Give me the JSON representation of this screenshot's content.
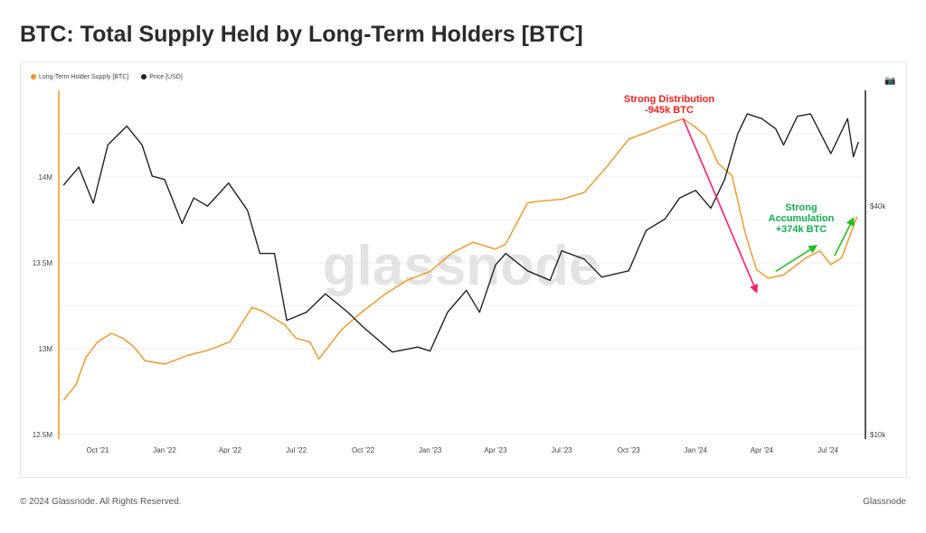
{
  "title": "BTC: Total Supply Held by Long-Term Holders [BTC]",
  "footer": {
    "copyright": "© 2024 Glassnode. All Rights Reserved.",
    "brand": "Glassnode"
  },
  "watermark": "glassnode",
  "toolbar": {
    "camera_icon": "camera-icon"
  },
  "chart_data": {
    "type": "line",
    "title": "BTC: Total Supply Held by Long-Term Holders [BTC]",
    "legend_placement": "top-left",
    "grid": true,
    "x_ticks": [
      "Oct '21",
      "Jan '22",
      "Apr '22",
      "Jul '22",
      "Oct '22",
      "Jan '23",
      "Apr '23",
      "Jul '23",
      "Oct '23",
      "Jan '24",
      "Apr '24",
      "Jul '24"
    ],
    "x_tick_dates": [
      "2021-10-01",
      "2022-01-01",
      "2022-04-01",
      "2022-07-01",
      "2022-10-01",
      "2023-01-01",
      "2023-04-01",
      "2023-07-01",
      "2023-10-01",
      "2024-01-01",
      "2024-04-01",
      "2024-07-01"
    ],
    "y_left": {
      "ticks": [
        "12.5M",
        "13M",
        "13.5M",
        "14M"
      ],
      "tick_values": [
        12.5,
        13,
        13.5,
        14
      ],
      "unit": "M BTC",
      "range": [
        12.5,
        14.5
      ]
    },
    "y_right": {
      "scale": "log",
      "ticks": [
        "$10k",
        "$40k"
      ],
      "tick_values": [
        10000,
        40000
      ],
      "range": [
        10000,
        80800
      ]
    },
    "series": [
      {
        "name": "Long-Term Holder Supply [BTC]",
        "axis": "left",
        "color": "#f7931a",
        "points": [
          [
            "2021-08-15",
            12.7
          ],
          [
            "2021-09-01",
            12.79
          ],
          [
            "2021-09-15",
            12.95
          ],
          [
            "2021-10-01",
            13.04
          ],
          [
            "2021-10-20",
            13.09
          ],
          [
            "2021-11-05",
            13.06
          ],
          [
            "2021-11-20",
            13.01
          ],
          [
            "2021-12-05",
            12.93
          ],
          [
            "2022-01-01",
            12.91
          ],
          [
            "2022-02-01",
            12.96
          ],
          [
            "2022-03-01",
            12.99
          ],
          [
            "2022-04-01",
            13.04
          ],
          [
            "2022-05-01",
            13.24
          ],
          [
            "2022-05-15",
            13.22
          ],
          [
            "2022-06-15",
            13.14
          ],
          [
            "2022-07-01",
            13.06
          ],
          [
            "2022-07-20",
            13.04
          ],
          [
            "2022-08-01",
            12.94
          ],
          [
            "2022-09-01",
            13.11
          ],
          [
            "2022-10-01",
            13.22
          ],
          [
            "2022-11-01",
            13.32
          ],
          [
            "2022-12-01",
            13.4
          ],
          [
            "2023-01-01",
            13.45
          ],
          [
            "2023-02-01",
            13.56
          ],
          [
            "2023-03-01",
            13.62
          ],
          [
            "2023-04-01",
            13.58
          ],
          [
            "2023-04-15",
            13.61
          ],
          [
            "2023-05-15",
            13.85
          ],
          [
            "2023-06-01",
            13.86
          ],
          [
            "2023-07-01",
            13.87
          ],
          [
            "2023-08-01",
            13.91
          ],
          [
            "2023-09-01",
            14.06
          ],
          [
            "2023-10-01",
            14.22
          ],
          [
            "2023-11-01",
            14.27
          ],
          [
            "2023-12-01",
            14.32
          ],
          [
            "2023-12-15",
            14.34
          ],
          [
            "2024-01-01",
            14.29
          ],
          [
            "2024-01-15",
            14.24
          ],
          [
            "2024-02-01",
            14.08
          ],
          [
            "2024-02-20",
            14.01
          ],
          [
            "2024-03-10",
            13.66
          ],
          [
            "2024-03-25",
            13.46
          ],
          [
            "2024-04-10",
            13.41
          ],
          [
            "2024-05-01",
            13.43
          ],
          [
            "2024-06-01",
            13.53
          ],
          [
            "2024-06-20",
            13.57
          ],
          [
            "2024-07-05",
            13.49
          ],
          [
            "2024-07-20",
            13.53
          ],
          [
            "2024-08-10",
            13.77
          ]
        ]
      },
      {
        "name": "Price [USD]",
        "axis": "right",
        "color": "#222222",
        "points": [
          [
            "2021-08-15",
            45400
          ],
          [
            "2021-09-05",
            50700
          ],
          [
            "2021-09-25",
            40700
          ],
          [
            "2021-10-15",
            58000
          ],
          [
            "2021-11-10",
            65000
          ],
          [
            "2021-12-01",
            58000
          ],
          [
            "2021-12-15",
            48000
          ],
          [
            "2022-01-01",
            47000
          ],
          [
            "2022-01-25",
            36000
          ],
          [
            "2022-02-10",
            42000
          ],
          [
            "2022-03-01",
            40000
          ],
          [
            "2022-03-30",
            46000
          ],
          [
            "2022-04-25",
            39000
          ],
          [
            "2022-05-12",
            30000
          ],
          [
            "2022-06-01",
            30000
          ],
          [
            "2022-06-18",
            20000
          ],
          [
            "2022-07-15",
            21000
          ],
          [
            "2022-08-10",
            23500
          ],
          [
            "2022-09-10",
            21000
          ],
          [
            "2022-10-01",
            19200
          ],
          [
            "2022-11-10",
            16500
          ],
          [
            "2022-12-15",
            17000
          ],
          [
            "2023-01-01",
            16600
          ],
          [
            "2023-01-25",
            21000
          ],
          [
            "2023-02-20",
            24000
          ],
          [
            "2023-03-10",
            21000
          ],
          [
            "2023-04-01",
            28000
          ],
          [
            "2023-04-15",
            30000
          ],
          [
            "2023-05-15",
            27000
          ],
          [
            "2023-06-15",
            25500
          ],
          [
            "2023-07-01",
            30500
          ],
          [
            "2023-08-01",
            29000
          ],
          [
            "2023-08-25",
            26000
          ],
          [
            "2023-10-01",
            27000
          ],
          [
            "2023-10-25",
            34500
          ],
          [
            "2023-11-20",
            37000
          ],
          [
            "2023-12-10",
            42000
          ],
          [
            "2024-01-01",
            44000
          ],
          [
            "2024-01-22",
            39500
          ],
          [
            "2024-02-10",
            47000
          ],
          [
            "2024-02-28",
            62000
          ],
          [
            "2024-03-12",
            70000
          ],
          [
            "2024-04-01",
            68000
          ],
          [
            "2024-04-20",
            64000
          ],
          [
            "2024-05-01",
            58000
          ],
          [
            "2024-05-20",
            69000
          ],
          [
            "2024-06-07",
            70000
          ],
          [
            "2024-06-25",
            60000
          ],
          [
            "2024-07-05",
            55000
          ],
          [
            "2024-07-28",
            68000
          ],
          [
            "2024-08-05",
            54000
          ],
          [
            "2024-08-12",
            59000
          ]
        ]
      }
    ],
    "annotations": [
      {
        "lines": [
          "Strong Distribution",
          "-945k BTC"
        ],
        "color": "#ff1a1a",
        "arrow_color": "#ff1a66",
        "arrow_from": [
          "2023-12-15",
          14.34
        ],
        "arrow_to": [
          "2024-03-25",
          13.33
        ]
      },
      {
        "lines": [
          "Strong",
          "Accumulation",
          "+374k BTC"
        ],
        "color": "#10b050",
        "arrow_color": "#22c022",
        "arrows": [
          [
            [
              "2024-04-20",
              13.45
            ],
            [
              "2024-06-15",
              13.6
            ]
          ],
          [
            [
              "2024-07-10",
              13.54
            ],
            [
              "2024-08-05",
              13.76
            ]
          ]
        ]
      }
    ]
  }
}
